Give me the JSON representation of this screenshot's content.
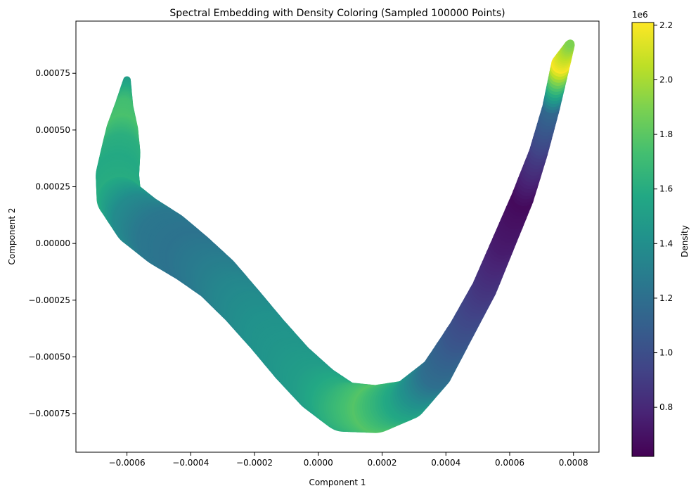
{
  "chart_data": {
    "type": "scatter",
    "title": "Spectral Embedding with Density Coloring (Sampled 100000 Points)",
    "xlabel": "Component 1",
    "ylabel": "Component 2",
    "xlim": [
      -0.00076,
      0.00088
    ],
    "ylim": [
      -0.00092,
      0.00098
    ],
    "xticks": [
      -0.0006,
      -0.0004,
      -0.0002,
      0.0,
      0.0002,
      0.0004,
      0.0006,
      0.0008
    ],
    "xtick_labels": [
      "−0.0006",
      "−0.0004",
      "−0.0002",
      "0.0000",
      "0.0002",
      "0.0004",
      "0.0006",
      "0.0008"
    ],
    "yticks": [
      -0.00075,
      -0.0005,
      -0.00025,
      0.0,
      0.00025,
      0.0005,
      0.00075
    ],
    "ytick_labels": [
      "−0.00075",
      "−0.00050",
      "−0.00025",
      "0.00000",
      "0.00025",
      "0.00050",
      "0.00075"
    ],
    "grid": false,
    "colorbar": {
      "label": "Density",
      "offset_text": "1e6",
      "colormap": "viridis",
      "range": [
        0.62,
        2.21
      ],
      "ticks": [
        0.8,
        1.0,
        1.2,
        1.4,
        1.6,
        1.8,
        2.0,
        2.2
      ],
      "tick_labels": [
        "0.8",
        "1.0",
        "1.2",
        "1.4",
        "1.6",
        "1.8",
        "2.0",
        "2.2"
      ]
    },
    "points_sampled": 100000,
    "curve": [
      {
        "x": -0.0006,
        "y": 0.00072,
        "halfwidth": 1.2e-05,
        "density": 1.5
      },
      {
        "x": -0.00061,
        "y": 0.0006,
        "halfwidth": 3e-05,
        "density": 1.72
      },
      {
        "x": -0.000615,
        "y": 0.0005,
        "halfwidth": 5e-05,
        "density": 1.75
      },
      {
        "x": -0.00062,
        "y": 0.0004,
        "halfwidth": 6.2e-05,
        "density": 1.62
      },
      {
        "x": -0.00063,
        "y": 0.0003,
        "halfwidth": 6.8e-05,
        "density": 1.58
      },
      {
        "x": -0.000625,
        "y": 0.0002,
        "halfwidth": 7e-05,
        "density": 1.6
      },
      {
        "x": -0.00056,
        "y": 0.0001,
        "halfwidth": 8.5e-05,
        "density": 1.38
      },
      {
        "x": -0.00048,
        "y": 2e-05,
        "halfwidth": 9e-05,
        "density": 1.25
      },
      {
        "x": -0.0004,
        "y": -6e-05,
        "halfwidth": 8.2e-05,
        "density": 1.22
      },
      {
        "x": -0.00032,
        "y": -0.00015,
        "halfwidth": 7.5e-05,
        "density": 1.28
      },
      {
        "x": -0.00024,
        "y": -0.00027,
        "halfwidth": 7e-05,
        "density": 1.36
      },
      {
        "x": -0.00016,
        "y": -0.0004,
        "halfwidth": 6.8e-05,
        "density": 1.42
      },
      {
        "x": -8e-05,
        "y": -0.00053,
        "halfwidth": 7e-05,
        "density": 1.45
      },
      {
        "x": 0.0,
        "y": -0.00064,
        "halfwidth": 7.5e-05,
        "density": 1.5
      },
      {
        "x": 8e-05,
        "y": -0.00072,
        "halfwidth": 7.8e-05,
        "density": 1.62
      },
      {
        "x": 0.00018,
        "y": -0.00073,
        "halfwidth": 7.5e-05,
        "density": 1.78
      },
      {
        "x": 0.00028,
        "y": -0.00069,
        "halfwidth": 6.2e-05,
        "density": 1.55
      },
      {
        "x": 0.00037,
        "y": -0.00057,
        "halfwidth": 5e-05,
        "density": 1.2
      },
      {
        "x": 0.00045,
        "y": -0.00038,
        "halfwidth": 4.2e-05,
        "density": 1.02
      },
      {
        "x": 0.00052,
        "y": -0.0002,
        "halfwidth": 4e-05,
        "density": 0.88
      },
      {
        "x": 0.00058,
        "y": 0.0,
        "halfwidth": 3.8e-05,
        "density": 0.74
      },
      {
        "x": 0.00064,
        "y": 0.0002,
        "halfwidth": 3.6e-05,
        "density": 0.66
      },
      {
        "x": 0.00069,
        "y": 0.0004,
        "halfwidth": 3e-05,
        "density": 0.9
      },
      {
        "x": 0.00073,
        "y": 0.0006,
        "halfwidth": 2.8e-05,
        "density": 1.15
      },
      {
        "x": 0.00076,
        "y": 0.00079,
        "halfwidth": 3e-05,
        "density": 2.2
      },
      {
        "x": 0.00079,
        "y": 0.00088,
        "halfwidth": 1.5e-05,
        "density": 1.9
      }
    ]
  }
}
